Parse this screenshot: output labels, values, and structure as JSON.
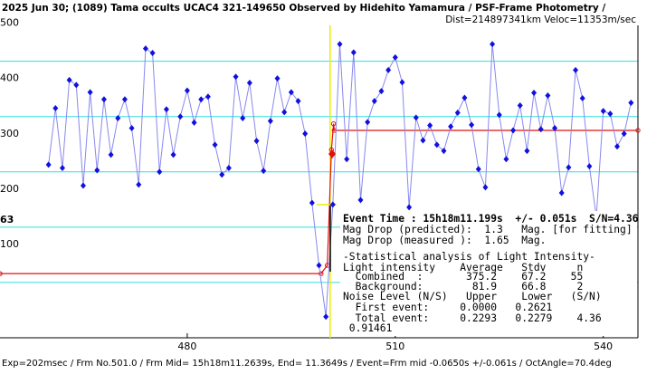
{
  "chart_data": {
    "type": "line",
    "title": "2025 Jun 30; (1089) Tama occults UCAC4 321-149650 Observed by Hidehito Yamamura / PSF-Frame Photometry /",
    "subtitle": "Dist=214897341km Veloc=11353m/sec",
    "footer": "Exp=202msec / Frm No.501.0 / Frm Mid= 15h18m11.2639s, End= 11.3649s / Event=Frm mid -0.0650s +/-0.061s / OctAngle=70.4deg",
    "edge_label": "63",
    "x": [
      460,
      461,
      462,
      463,
      464,
      465,
      466,
      467,
      468,
      469,
      470,
      471,
      472,
      473,
      474,
      475,
      476,
      477,
      478,
      479,
      480,
      481,
      482,
      483,
      484,
      485,
      486,
      487,
      488,
      489,
      490,
      491,
      492,
      493,
      494,
      495,
      496,
      497,
      498,
      499,
      500,
      501,
      502,
      503,
      504,
      505,
      506,
      507,
      508,
      509,
      510,
      511,
      512,
      513,
      514,
      515,
      516,
      517,
      518,
      519,
      520,
      521,
      522,
      523,
      524,
      525,
      526,
      527,
      528,
      529,
      530,
      531,
      532,
      533,
      534,
      535,
      536,
      537,
      538,
      539,
      540,
      541,
      542,
      543,
      544
    ],
    "series": [
      {
        "color": "#1010e0",
        "line_color": "#8888ee",
        "values": [
          313,
          415,
          307,
          466,
          457,
          275,
          444,
          303,
          431,
          331,
          397,
          431,
          379,
          277,
          523,
          515,
          300,
          413,
          331,
          400,
          447,
          389,
          431,
          436,
          349,
          295,
          307,
          472,
          397,
          461,
          356,
          302,
          392,
          469,
          408,
          444,
          428,
          369,
          244,
          131,
          38,
          241,
          531,
          323,
          516,
          249,
          390,
          428,
          446,
          484,
          507,
          462,
          236,
          398,
          357,
          384,
          349,
          338,
          382,
          407,
          434,
          385,
          305,
          272,
          531,
          403,
          323,
          375,
          420,
          338,
          443,
          377,
          438,
          379,
          262,
          308,
          484,
          433,
          310,
          218,
          410,
          405,
          346,
          369,
          425
        ]
      },
      {
        "color": "#e01010",
        "x": [
          453,
          499.3,
          500.2,
          500.8,
          501.1,
          501.2,
          545
        ],
        "values": [
          116,
          116,
          131,
          340,
          387,
          375,
          375
        ]
      }
    ],
    "event_line_x": 500.6,
    "xlim": [
      453,
      545
    ],
    "ylim": [
      0,
      560
    ],
    "xticks": [
      480,
      510,
      540
    ],
    "yticks": [
      100,
      200,
      300,
      400,
      500
    ],
    "grid": true,
    "grid_color": "#33dddd",
    "event_color": "#eeee00",
    "annotation_lines": [
      "Event Time : 15h18m11.199s  +/- 0.051s  S/N=4.36",
      "Mag Drop (predicted):  1.3   Mag. [for fitting]",
      "Mag Drop (measured ):  1.65  Mag.",
      "-Statistical analysis of Light Intensity-",
      "Light intensity    Average   Stdv     n",
      "  Combined  :       375.2    67.2    55",
      "  Background:        81.9    66.8     2",
      "Noise Level (N/S)   Upper    Lower   (S/N)",
      "  First event:     0.0000   0.2621",
      "  Total event:     0.2293   0.2279    4.36",
      " 0.91461"
    ]
  }
}
